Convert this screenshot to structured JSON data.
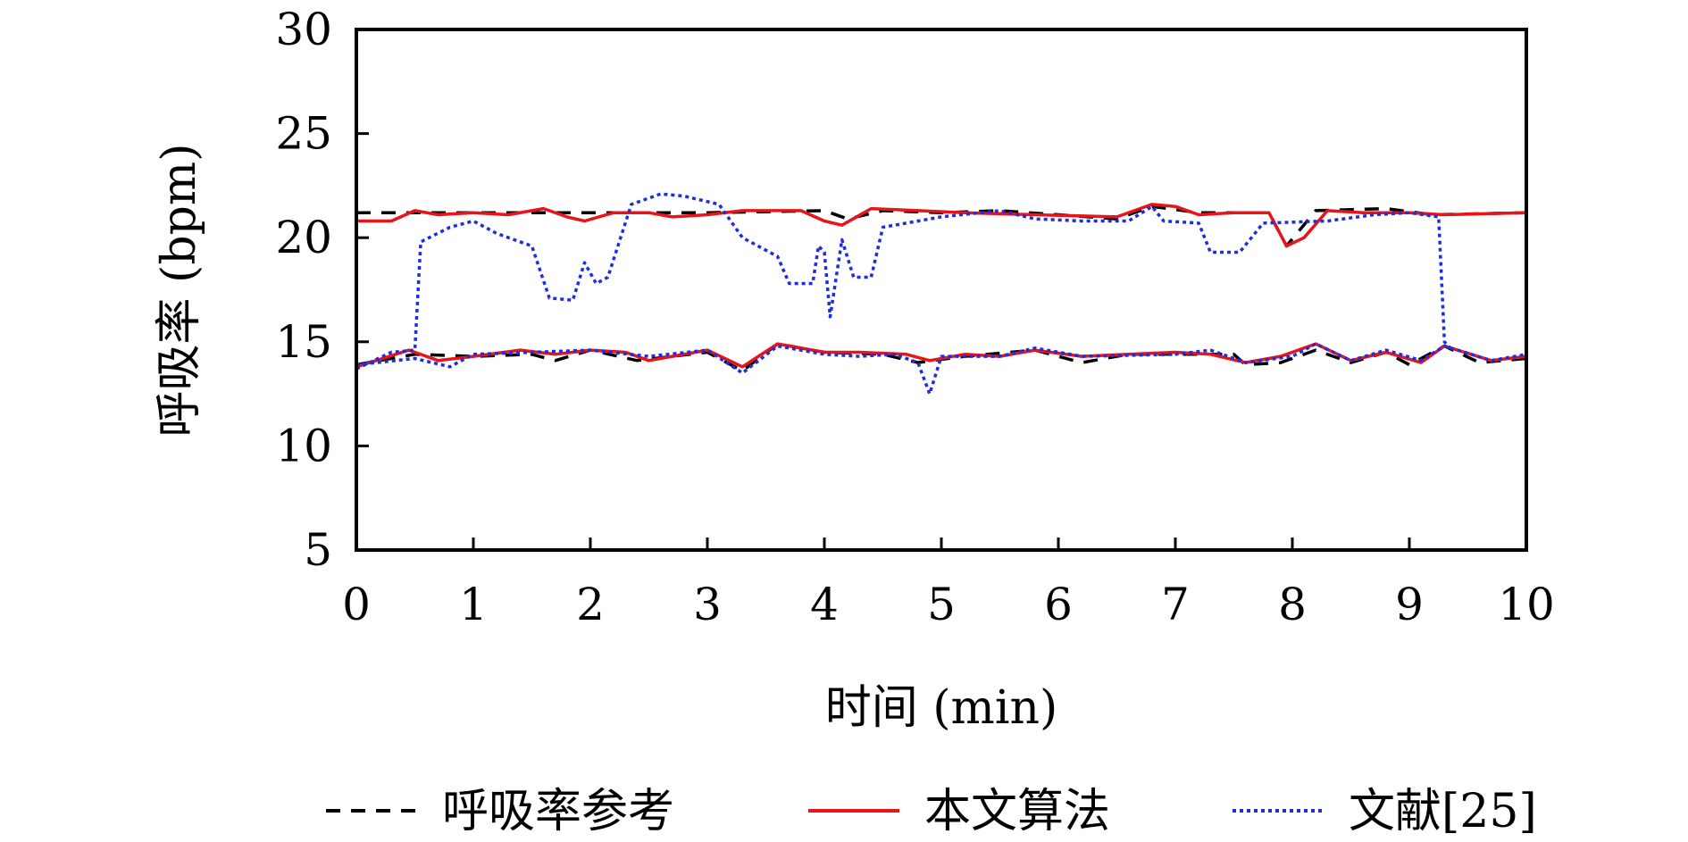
{
  "chart_data": {
    "type": "line",
    "title": "",
    "xlabel": "时间 (min)",
    "ylabel": "呼吸率 (bpm)",
    "xlim": [
      0,
      10
    ],
    "ylim": [
      5,
      30
    ],
    "xticks": [
      0,
      1,
      2,
      3,
      4,
      5,
      6,
      7,
      8,
      9,
      10
    ],
    "yticks": [
      5,
      10,
      15,
      20,
      25,
      30
    ],
    "xtick_labels": [
      "0",
      "1",
      "2",
      "3",
      "4",
      "5",
      "6",
      "7",
      "8",
      "9",
      "10"
    ],
    "ytick_labels": [
      "5",
      "10",
      "15",
      "20",
      "25",
      "30"
    ],
    "grid": false,
    "legend": {
      "placement": "bottom",
      "entries": [
        "呼吸率参考",
        "本文算法",
        "文献[25]"
      ]
    },
    "series": [
      {
        "name": "呼吸率参考",
        "color": "#000000",
        "style": "dashed",
        "segments": [
          [
            [
              0,
              21.2
            ],
            [
              1,
              21.2
            ],
            [
              2,
              21.2
            ],
            [
              3,
              21.2
            ],
            [
              4,
              21.3
            ],
            [
              4.2,
              20.9
            ],
            [
              4.5,
              21.3
            ],
            [
              5,
              21.2
            ],
            [
              5.5,
              21.3
            ],
            [
              6,
              21.1
            ],
            [
              6.5,
              20.9
            ],
            [
              6.8,
              21.5
            ],
            [
              7.2,
              21.2
            ],
            [
              7.8,
              21.2
            ],
            [
              7.95,
              19.6
            ],
            [
              8.2,
              21.3
            ],
            [
              8.8,
              21.4
            ],
            [
              9.2,
              21.1
            ],
            [
              10,
              21.2
            ]
          ],
          [
            [
              0,
              13.9
            ],
            [
              0.5,
              14.4
            ],
            [
              1,
              14.3
            ],
            [
              1.5,
              14.4
            ],
            [
              1.7,
              14.1
            ],
            [
              2,
              14.6
            ],
            [
              2.4,
              14.1
            ],
            [
              3,
              14.5
            ],
            [
              3.3,
              13.6
            ],
            [
              3.6,
              14.9
            ],
            [
              4,
              14.5
            ],
            [
              4.5,
              14.4
            ],
            [
              4.8,
              14.0
            ],
            [
              5.2,
              14.3
            ],
            [
              5.8,
              14.6
            ],
            [
              6.2,
              14.0
            ],
            [
              6.6,
              14.4
            ],
            [
              7.2,
              14.4
            ],
            [
              7.5,
              14.4
            ],
            [
              7.6,
              13.9
            ],
            [
              7.9,
              14.0
            ],
            [
              8.2,
              14.6
            ],
            [
              8.5,
              14.0
            ],
            [
              8.8,
              14.5
            ],
            [
              9.0,
              13.9
            ],
            [
              9.3,
              14.8
            ],
            [
              9.6,
              14.0
            ],
            [
              10,
              14.2
            ]
          ]
        ]
      },
      {
        "name": "本文算法",
        "color": "#e8141b",
        "style": "solid",
        "segments": [
          [
            [
              0,
              20.8
            ],
            [
              0.3,
              20.8
            ],
            [
              0.5,
              21.3
            ],
            [
              0.7,
              21.1
            ],
            [
              1,
              21.2
            ],
            [
              1.3,
              21.1
            ],
            [
              1.6,
              21.4
            ],
            [
              1.8,
              21.0
            ],
            [
              1.95,
              20.8
            ],
            [
              2.2,
              21.2
            ],
            [
              2.5,
              21.2
            ],
            [
              2.7,
              21.0
            ],
            [
              3.0,
              21.1
            ],
            [
              3.3,
              21.3
            ],
            [
              3.8,
              21.3
            ],
            [
              4.0,
              20.8
            ],
            [
              4.15,
              20.6
            ],
            [
              4.4,
              21.4
            ],
            [
              4.8,
              21.3
            ],
            [
              5.2,
              21.2
            ],
            [
              5.8,
              21.1
            ],
            [
              6.5,
              21.0
            ],
            [
              6.8,
              21.6
            ],
            [
              7.0,
              21.5
            ],
            [
              7.2,
              21.1
            ],
            [
              7.5,
              21.2
            ],
            [
              7.8,
              21.2
            ],
            [
              7.95,
              19.6
            ],
            [
              8.1,
              20.0
            ],
            [
              8.3,
              21.3
            ],
            [
              8.6,
              21.2
            ],
            [
              9.0,
              21.2
            ],
            [
              9.3,
              21.1
            ],
            [
              10,
              21.2
            ]
          ],
          [
            [
              0,
              13.8
            ],
            [
              0.45,
              14.6
            ],
            [
              0.7,
              14.1
            ],
            [
              1,
              14.3
            ],
            [
              1.4,
              14.6
            ],
            [
              1.7,
              14.4
            ],
            [
              2,
              14.6
            ],
            [
              2.3,
              14.5
            ],
            [
              2.5,
              14.1
            ],
            [
              2.8,
              14.4
            ],
            [
              3.0,
              14.6
            ],
            [
              3.3,
              13.8
            ],
            [
              3.6,
              14.9
            ],
            [
              4.0,
              14.5
            ],
            [
              4.3,
              14.5
            ],
            [
              4.7,
              14.4
            ],
            [
              4.9,
              14.1
            ],
            [
              5.2,
              14.4
            ],
            [
              5.5,
              14.3
            ],
            [
              5.8,
              14.6
            ],
            [
              6.2,
              14.3
            ],
            [
              6.6,
              14.4
            ],
            [
              7.0,
              14.5
            ],
            [
              7.3,
              14.4
            ],
            [
              7.6,
              14.0
            ],
            [
              7.9,
              14.3
            ],
            [
              8.2,
              14.9
            ],
            [
              8.5,
              14.1
            ],
            [
              8.8,
              14.5
            ],
            [
              9.1,
              14.0
            ],
            [
              9.3,
              14.8
            ],
            [
              9.7,
              14.1
            ],
            [
              10,
              14.3
            ]
          ]
        ]
      },
      {
        "name": "文献[25]",
        "color": "#1f2de0",
        "style": "dotted",
        "segments": [
          [
            [
              0,
              13.7
            ],
            [
              0.3,
              14.5
            ],
            [
              0.5,
              14.6
            ],
            [
              0.55,
              19.8
            ],
            [
              0.8,
              20.5
            ],
            [
              1.0,
              20.8
            ],
            [
              1.2,
              20.2
            ],
            [
              1.5,
              19.6
            ],
            [
              1.65,
              17.1
            ],
            [
              1.85,
              17.0
            ],
            [
              1.95,
              18.8
            ],
            [
              2.05,
              17.8
            ],
            [
              2.15,
              18.1
            ],
            [
              2.35,
              21.6
            ],
            [
              2.6,
              22.1
            ],
            [
              2.8,
              22.0
            ],
            [
              3.1,
              21.6
            ],
            [
              3.3,
              20.0
            ],
            [
              3.6,
              19.1
            ],
            [
              3.7,
              17.8
            ],
            [
              3.9,
              17.8
            ],
            [
              3.95,
              19.6
            ],
            [
              4.0,
              19.3
            ],
            [
              4.05,
              16.2
            ],
            [
              4.15,
              19.9
            ],
            [
              4.25,
              18.1
            ],
            [
              4.4,
              18.1
            ],
            [
              4.5,
              20.5
            ],
            [
              5.0,
              21.0
            ],
            [
              5.5,
              21.3
            ],
            [
              5.8,
              20.9
            ],
            [
              6.2,
              20.8
            ],
            [
              6.6,
              20.8
            ],
            [
              6.8,
              21.5
            ],
            [
              6.9,
              20.8
            ],
            [
              7.2,
              20.7
            ],
            [
              7.3,
              19.3
            ],
            [
              7.55,
              19.3
            ],
            [
              7.75,
              20.7
            ],
            [
              8.3,
              20.8
            ],
            [
              8.7,
              21.1
            ],
            [
              9.0,
              21.2
            ],
            [
              9.25,
              21.0
            ],
            [
              9.3,
              15.0
            ],
            [
              9.35,
              14.7
            ]
          ],
          [
            [
              0,
              13.9
            ],
            [
              0.5,
              14.2
            ],
            [
              0.8,
              13.8
            ],
            [
              1.0,
              14.4
            ],
            [
              1.5,
              14.5
            ],
            [
              2,
              14.6
            ],
            [
              2.5,
              14.3
            ],
            [
              3,
              14.6
            ],
            [
              3.3,
              13.5
            ],
            [
              3.6,
              14.8
            ],
            [
              4.0,
              14.4
            ],
            [
              4.3,
              14.3
            ],
            [
              4.6,
              14.4
            ],
            [
              4.8,
              14.0
            ],
            [
              4.9,
              12.5
            ],
            [
              5.0,
              14.3
            ],
            [
              5.5,
              14.3
            ],
            [
              5.8,
              14.7
            ],
            [
              6.2,
              14.3
            ],
            [
              7.0,
              14.4
            ],
            [
              7.3,
              14.6
            ],
            [
              7.6,
              14.0
            ],
            [
              8.0,
              14.3
            ],
            [
              8.2,
              14.9
            ],
            [
              8.5,
              14.1
            ],
            [
              8.8,
              14.6
            ],
            [
              9.1,
              14.1
            ],
            [
              9.3,
              14.8
            ],
            [
              9.7,
              14.1
            ],
            [
              10,
              14.4
            ]
          ]
        ]
      }
    ]
  }
}
